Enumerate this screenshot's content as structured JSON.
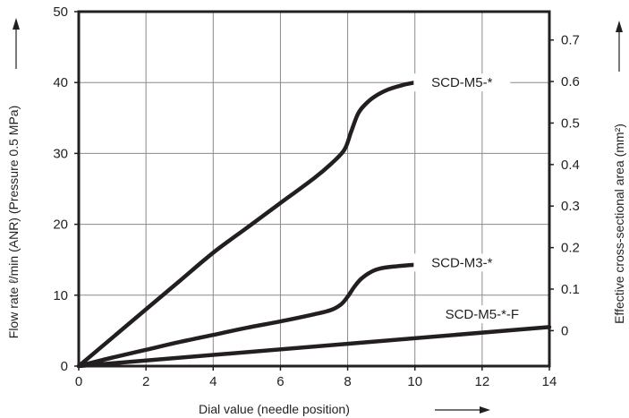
{
  "chart_data": {
    "type": "line",
    "xlabel": "Dial value (needle position)",
    "ylabel": "Flow rate ℓ/min (ANR) (Pressure 0.5 MPa)",
    "y2label": "Effective cross-sectional area (mm²)",
    "xlim": [
      0,
      14
    ],
    "ylim": [
      0,
      50
    ],
    "y2lim": [
      0,
      0.7
    ],
    "x_ticks": [
      "0",
      "2",
      "4",
      "6",
      "8",
      "10",
      "12",
      "14"
    ],
    "y_ticks": [
      "0",
      "10",
      "20",
      "30",
      "40",
      "50"
    ],
    "y2_ticks": [
      "0",
      "0.1",
      "0.2",
      "0.3",
      "0.4",
      "0.5",
      "0.6",
      "0.7"
    ],
    "y2_ticks_values": [
      0,
      0.1,
      0.2,
      0.3,
      0.4,
      0.5,
      0.6,
      0.7
    ],
    "grid": true,
    "series": [
      {
        "name": "SCD-M5-*",
        "x": [
          0,
          1,
          2,
          3,
          4,
          5,
          6,
          7,
          7.5,
          7.9,
          8.1,
          8.3,
          8.5,
          8.8,
          9.2,
          9.6,
          10,
          10.1
        ],
        "y": [
          0,
          4,
          8,
          12,
          16,
          19.5,
          23,
          26.5,
          28.5,
          30.5,
          33,
          35.5,
          36.8,
          38,
          39,
          39.6,
          40,
          40
        ]
      },
      {
        "name": "SCD-M3-*",
        "x": [
          0,
          1,
          2,
          3,
          4,
          5,
          6,
          7,
          7.5,
          7.8,
          8.0,
          8.2,
          8.4,
          8.7,
          9.0,
          9.5,
          10,
          10.2
        ],
        "y": [
          0,
          1.2,
          2.3,
          3.4,
          4.4,
          5.4,
          6.3,
          7.3,
          7.9,
          8.7,
          9.8,
          11.2,
          12.3,
          13.3,
          13.8,
          14.1,
          14.3,
          14.4
        ]
      },
      {
        "name": "SCD-M5-*-F",
        "x": [
          0,
          14
        ],
        "y": [
          0,
          5.5
        ]
      }
    ]
  }
}
